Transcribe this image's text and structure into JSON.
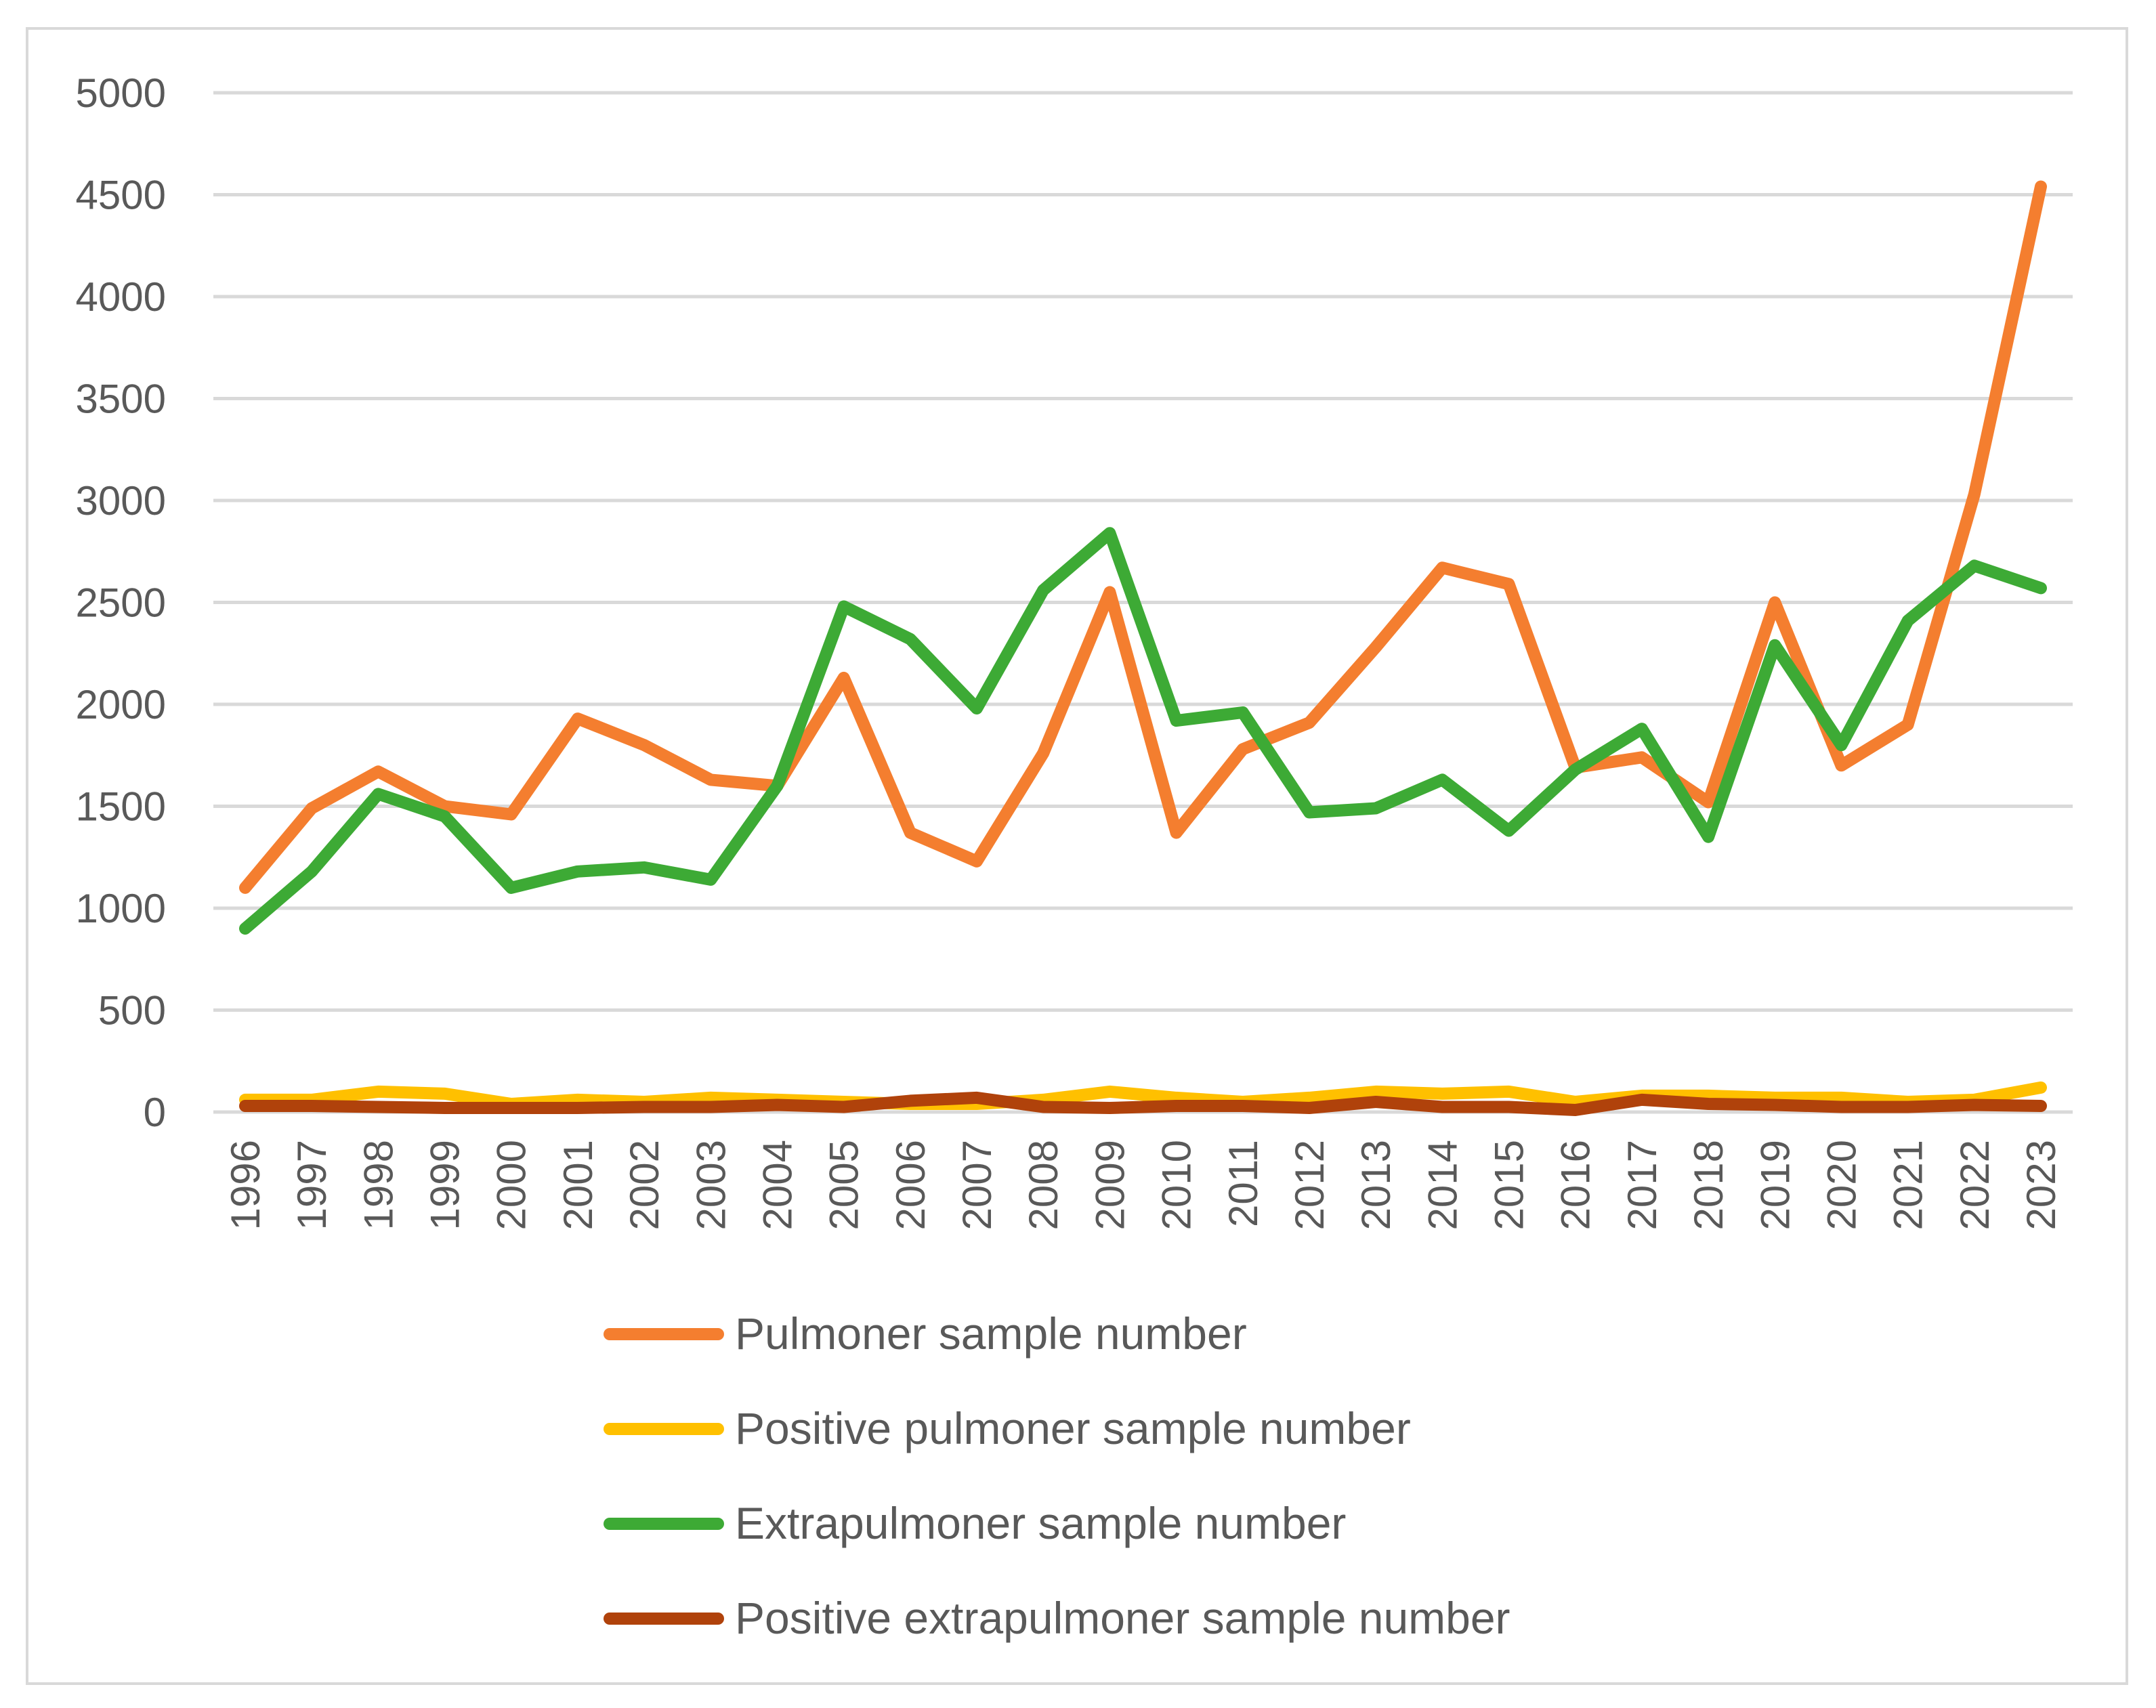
{
  "chart_data": {
    "type": "line",
    "title": "",
    "xlabel": "",
    "ylabel": "",
    "ylim": [
      0,
      5000
    ],
    "yticks": [
      0,
      500,
      1000,
      1500,
      2000,
      2500,
      3000,
      3500,
      4000,
      4500,
      5000
    ],
    "grid": true,
    "legend_position": "bottom",
    "categories": [
      "1996",
      "1997",
      "1998",
      "1999",
      "2000",
      "2001",
      "2002",
      "2003",
      "2004",
      "2005",
      "2006",
      "2007",
      "2008",
      "2009",
      "2010",
      "2011",
      "2012",
      "2013",
      "2014",
      "2015",
      "2016",
      "2017",
      "2018",
      "2019",
      "2020",
      "2021",
      "2022",
      "2023"
    ],
    "series": [
      {
        "name": "Pulmoner sample number",
        "color": "#f47e2f",
        "values": [
          1100,
          1490,
          1670,
          1500,
          1460,
          1930,
          1800,
          1630,
          1600,
          2130,
          1370,
          1230,
          1760,
          2550,
          1370,
          1780,
          1910,
          2280,
          2670,
          2590,
          1690,
          1740,
          1520,
          2500,
          1700,
          1900,
          3030,
          4540
        ]
      },
      {
        "name": "Positive pulmoner sample number",
        "color": "#ffc000",
        "values": [
          60,
          60,
          100,
          90,
          40,
          60,
          50,
          70,
          60,
          50,
          40,
          40,
          60,
          100,
          70,
          50,
          70,
          100,
          90,
          100,
          50,
          80,
          80,
          70,
          70,
          50,
          60,
          120
        ]
      },
      {
        "name": "Extrapulmoner sample number",
        "color": "#3daa35",
        "values": [
          900,
          1180,
          1560,
          1450,
          1100,
          1180,
          1200,
          1140,
          1600,
          2480,
          2320,
          1980,
          2560,
          2840,
          1920,
          1960,
          1470,
          1490,
          1630,
          1380,
          1680,
          1880,
          1350,
          2290,
          1800,
          2410,
          2680,
          2570
        ]
      },
      {
        "name": "Positive extrapulmoner sample number",
        "color": "#b0420b",
        "values": [
          30,
          30,
          25,
          20,
          20,
          20,
          25,
          25,
          35,
          25,
          55,
          70,
          25,
          20,
          30,
          30,
          20,
          50,
          25,
          25,
          10,
          60,
          40,
          35,
          25,
          25,
          35,
          30
        ]
      }
    ]
  }
}
